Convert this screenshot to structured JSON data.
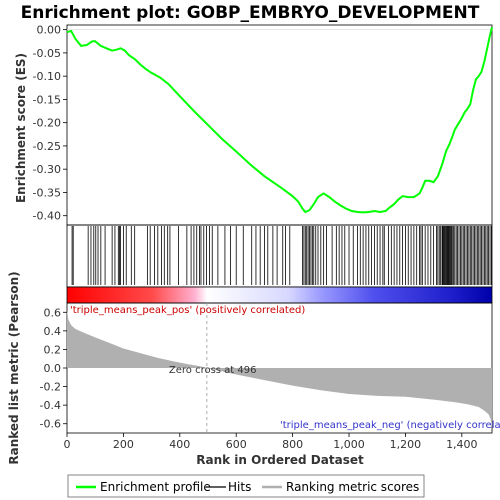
{
  "chart_data": {
    "type": "line",
    "title": "Enrichment plot: GOBP_EMBRYO_DEVELOPMENT",
    "panels": {
      "enrichment": {
        "ylabel": "Enrichment score (ES)",
        "ylim": [
          -0.42,
          0.01
        ],
        "yticks": [
          0.0,
          -0.05,
          -0.1,
          -0.15,
          -0.2,
          -0.25,
          -0.3,
          -0.35,
          -0.4
        ],
        "ytick_labels": [
          "0.00",
          "-0.05",
          "-0.10",
          "-0.15",
          "-0.20",
          "-0.25",
          "-0.30",
          "-0.35",
          "-0.40"
        ],
        "series": [
          {
            "name": "Enrichment profile",
            "color": "#00ff00",
            "x": [
              0,
              15,
              30,
              50,
              70,
              90,
              100,
              120,
              140,
              160,
              175,
              190,
              205,
              220,
              240,
              260,
              280,
              300,
              330,
              360,
              400,
              450,
              500,
              550,
              600,
              650,
              700,
              760,
              800,
              820,
              835,
              845,
              860,
              875,
              890,
              910,
              930,
              950,
              970,
              990,
              1010,
              1030,
              1050,
              1070,
              1090,
              1110,
              1130,
              1145,
              1160,
              1175,
              1190,
              1210,
              1230,
              1250,
              1260,
              1270,
              1285,
              1300,
              1315,
              1330,
              1340,
              1345,
              1355,
              1365,
              1375,
              1390,
              1400,
              1410,
              1420,
              1430,
              1440,
              1450,
              1460,
              1470,
              1480,
              1490,
              1500,
              1507
            ],
            "y": [
              -0.005,
              -0.003,
              -0.02,
              -0.035,
              -0.033,
              -0.025,
              -0.025,
              -0.035,
              -0.04,
              -0.045,
              -0.043,
              -0.04,
              -0.045,
              -0.055,
              -0.063,
              -0.075,
              -0.085,
              -0.093,
              -0.103,
              -0.117,
              -0.143,
              -0.175,
              -0.205,
              -0.235,
              -0.262,
              -0.29,
              -0.315,
              -0.34,
              -0.358,
              -0.37,
              -0.385,
              -0.392,
              -0.388,
              -0.375,
              -0.36,
              -0.352,
              -0.36,
              -0.37,
              -0.378,
              -0.385,
              -0.39,
              -0.392,
              -0.393,
              -0.392,
              -0.39,
              -0.392,
              -0.39,
              -0.382,
              -0.375,
              -0.365,
              -0.358,
              -0.36,
              -0.36,
              -0.352,
              -0.34,
              -0.325,
              -0.325,
              -0.328,
              -0.315,
              -0.29,
              -0.27,
              -0.26,
              -0.248,
              -0.232,
              -0.215,
              -0.2,
              -0.19,
              -0.178,
              -0.17,
              -0.16,
              -0.13,
              -0.107,
              -0.1,
              -0.09,
              -0.068,
              -0.04,
              -0.012,
              0.005
            ]
          }
        ],
        "hits": [
          18,
          22,
          75,
          85,
          95,
          102,
          110,
          120,
          135,
          160,
          170,
          182,
          186,
          190,
          200,
          210,
          228,
          240,
          285,
          295,
          310,
          322,
          335,
          345,
          357,
          365,
          395,
          425,
          440,
          450,
          460,
          470,
          475,
          485,
          495,
          505,
          515,
          535,
          560,
          580,
          600,
          625,
          655,
          670,
          685,
          700,
          712,
          730,
          745,
          765,
          775,
          790,
          835,
          840,
          845,
          850,
          855,
          860,
          865,
          870,
          875,
          882,
          890,
          900,
          910,
          920,
          940,
          955,
          965,
          975,
          985,
          1000,
          1015,
          1030,
          1040,
          1050,
          1060,
          1070,
          1080,
          1090,
          1100,
          1110,
          1120,
          1125,
          1140,
          1150,
          1160,
          1170,
          1180,
          1190,
          1200,
          1210,
          1220,
          1230,
          1240,
          1250,
          1255,
          1260,
          1270,
          1280,
          1290,
          1300,
          1310,
          1315,
          1320,
          1325,
          1330,
          1333,
          1336,
          1339,
          1342,
          1345,
          1348,
          1351,
          1354,
          1357,
          1360,
          1363,
          1366,
          1370,
          1375,
          1380,
          1385,
          1390,
          1395,
          1400,
          1405,
          1410,
          1415,
          1420,
          1425,
          1430,
          1435,
          1440,
          1445,
          1450,
          1455,
          1460,
          1465,
          1470,
          1475,
          1480,
          1485,
          1490,
          1495,
          1500,
          1505
        ]
      },
      "ranking": {
        "ylabel": "Ranked list metric (Pearson)",
        "ylim": [
          -0.7,
          0.7
        ],
        "yticks": [
          0.6,
          0.4,
          0.2,
          0.0,
          -0.2,
          -0.4,
          -0.6
        ],
        "ytick_labels": [
          "0.6",
          "0.4",
          "0.2",
          "0.0",
          "-0.2",
          "-0.4",
          "-0.6"
        ],
        "series": [
          {
            "name": "Ranking metric scores",
            "color": "#b0b0b0",
            "x": [
              0,
              5,
              15,
              30,
              60,
              100,
              150,
              200,
              260,
              320,
              380,
              430,
              470,
              496,
              540,
              600,
              700,
              800,
              900,
              1000,
              1100,
              1200,
              1300,
              1380,
              1420,
              1460,
              1480,
              1495,
              1502,
              1507
            ],
            "y": [
              0.62,
              0.52,
              0.46,
              0.42,
              0.38,
              0.33,
              0.27,
              0.21,
              0.16,
              0.11,
              0.07,
              0.04,
              0.02,
              0.0,
              -0.03,
              -0.07,
              -0.13,
              -0.19,
              -0.24,
              -0.28,
              -0.3,
              -0.31,
              -0.34,
              -0.37,
              -0.39,
              -0.42,
              -0.46,
              -0.5,
              -0.55,
              -0.64
            ]
          }
        ],
        "annotations": [
          {
            "text": "'triple_means_peak_pos' (positively correlated)",
            "color": "#cc0000"
          },
          {
            "text": "Zero cross at 496",
            "color": "#333333",
            "x": 496
          },
          {
            "text": "'triple_means_peak_neg' (negatively correlated)",
            "color": "#3333cc"
          }
        ]
      }
    },
    "xlabel": "Rank in Ordered Dataset",
    "xlim": [
      0,
      1507
    ],
    "xticks": [
      0,
      200,
      400,
      600,
      800,
      1000,
      1200,
      1400
    ],
    "xtick_labels": [
      "0",
      "200",
      "400",
      "600",
      "800",
      "1,000",
      "1,200",
      "1,400"
    ],
    "colors": {
      "profile": "#00ff00",
      "hits": "#000000",
      "pos_bar": "#ff0000",
      "neg_bar": "#0000ff",
      "metric_fill": "#b0b0b0"
    },
    "legend": {
      "position": "bottom",
      "items": [
        {
          "label": "Enrichment profile",
          "color": "#00ff00"
        },
        {
          "label": "Hits",
          "color": "#000000"
        },
        {
          "label": "Ranking metric scores",
          "color": "#b0b0b0"
        }
      ]
    }
  }
}
